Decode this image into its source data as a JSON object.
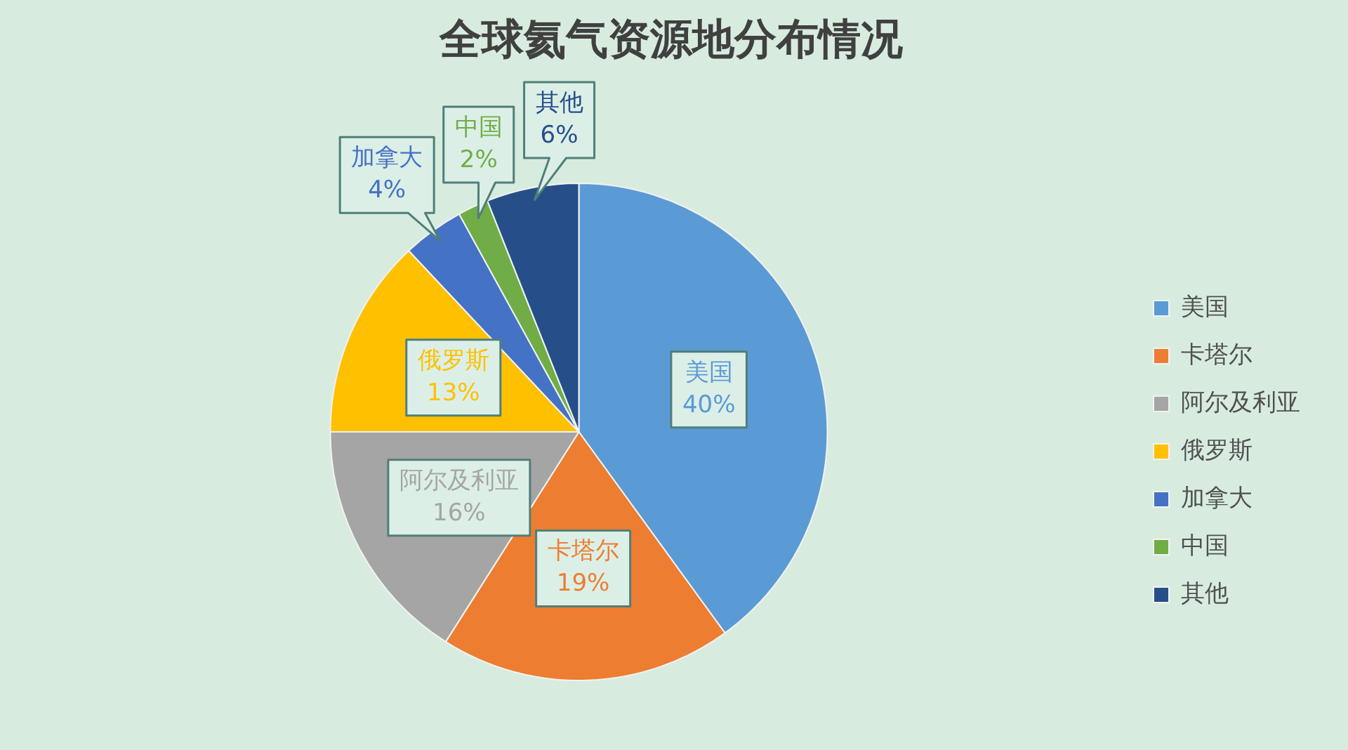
{
  "chart_data": {
    "type": "pie",
    "title": "全球氦气资源地分布情况",
    "categories": [
      "美国",
      "卡塔尔",
      "阿尔及利亚",
      "俄罗斯",
      "加拿大",
      "中国",
      "其他"
    ],
    "values": [
      40,
      19,
      16,
      13,
      4,
      2,
      6
    ],
    "value_labels": [
      "40%",
      "19%",
      "16%",
      "13%",
      "4%",
      "2%",
      "6%"
    ],
    "colors": [
      "#5b9bd5",
      "#ed7d31",
      "#a5a5a5",
      "#ffc000",
      "#4472c4",
      "#70ad47",
      "#264f8a"
    ],
    "legend": "right"
  }
}
